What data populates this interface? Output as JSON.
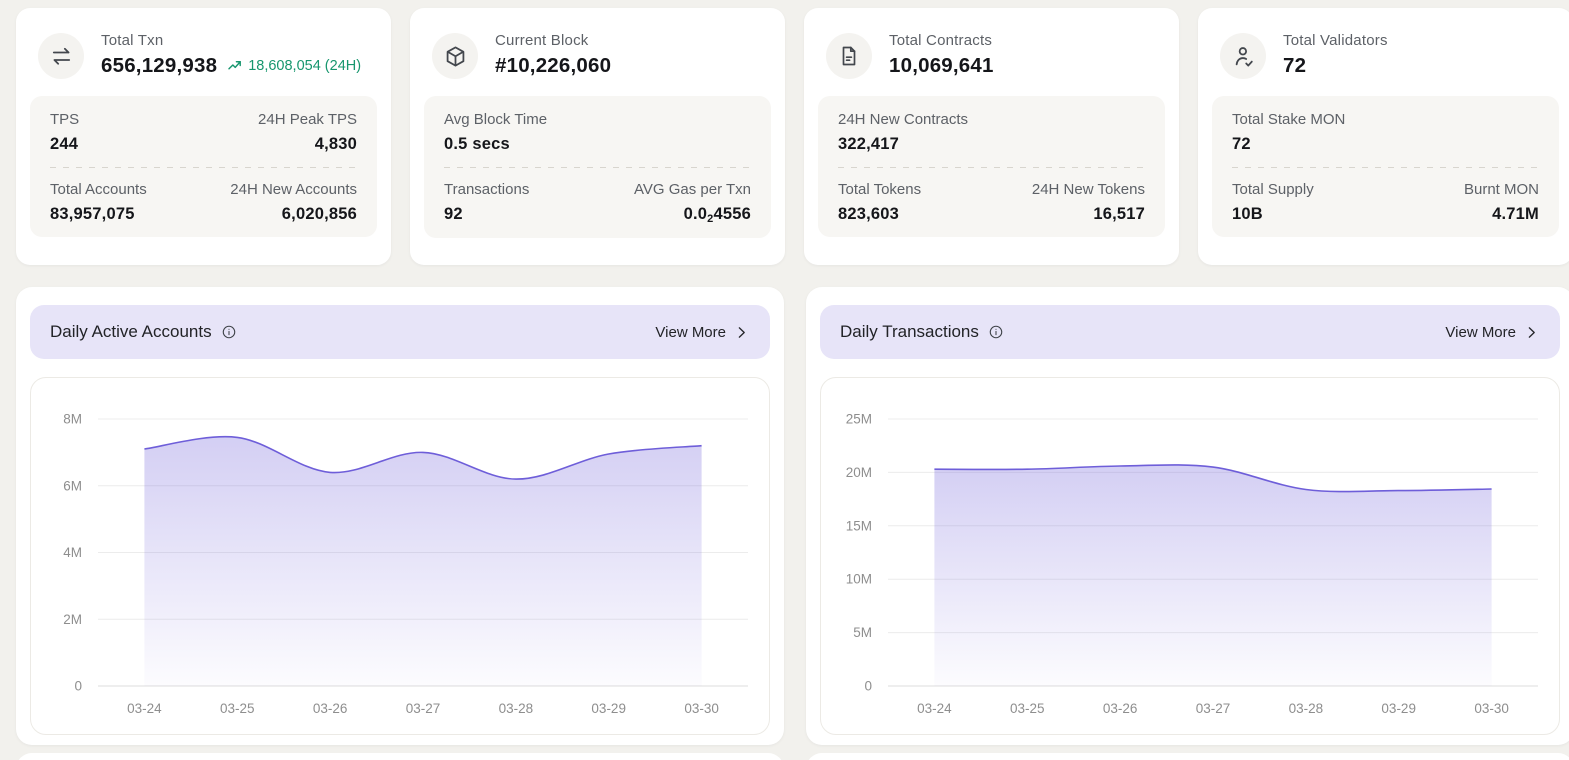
{
  "view_more_label": "View More",
  "colors": {
    "accent_purple": "#6E5ED9",
    "header_lavender": "#E7E4F8",
    "trend_green": "#17966E",
    "page_bg": "#F2F1ED"
  },
  "stat_cards": [
    {
      "icon": "transfer-icon",
      "title": "Total Txn",
      "value": "656,129,938",
      "trend": "18,608,054 (24H)",
      "rows": [
        {
          "left": {
            "label": "TPS",
            "value": "244"
          },
          "right": {
            "label": "24H Peak TPS",
            "value": "4,830"
          }
        },
        {
          "left": {
            "label": "Total Accounts",
            "value": "83,957,075"
          },
          "right": {
            "label": "24H New Accounts",
            "value": "6,020,856"
          }
        }
      ]
    },
    {
      "icon": "block-cube-icon",
      "title": "Current Block",
      "value": "#10,226,060",
      "rows": [
        {
          "left": {
            "label": "Avg Block Time",
            "value": "0.5 secs"
          }
        },
        {
          "left": {
            "label": "Transactions",
            "value": "92"
          },
          "right": {
            "label": "AVG Gas per Txn",
            "value_prefix": "0.0",
            "value_sub": "2",
            "value_suffix": "4556"
          }
        }
      ]
    },
    {
      "icon": "contract-document-icon",
      "title": "Total Contracts",
      "value": "10,069,641",
      "rows": [
        {
          "left": {
            "label": "24H New Contracts",
            "value": "322,417"
          }
        },
        {
          "left": {
            "label": "Total Tokens",
            "value": "823,603"
          },
          "right": {
            "label": "24H New Tokens",
            "value": "16,517"
          }
        }
      ]
    },
    {
      "icon": "validator-person-check-icon",
      "title": "Total Validators",
      "value": "72",
      "rows": [
        {
          "left": {
            "label": "Total Stake MON",
            "value": "72"
          }
        },
        {
          "left": {
            "label": "Total Supply",
            "value": "10B"
          },
          "right": {
            "label": "Burnt MON",
            "value": "4.71M"
          }
        }
      ]
    }
  ],
  "chart_data": [
    {
      "type": "area",
      "title": "Daily Active Accounts",
      "categories": [
        "03-24",
        "03-25",
        "03-26",
        "03-27",
        "03-28",
        "03-29",
        "03-30"
      ],
      "values_millions": [
        7.1,
        7.45,
        6.4,
        7.0,
        6.2,
        6.95,
        7.2
      ],
      "ytick_values": [
        0,
        2,
        4,
        6,
        8
      ],
      "ytick_labels": [
        "0",
        "2M",
        "4M",
        "6M",
        "8M"
      ],
      "ylim": [
        0,
        8
      ],
      "xlabel": "",
      "ylabel": "",
      "grid": true,
      "legend": "none",
      "line_color": "#6E5ED9"
    },
    {
      "type": "area",
      "title": "Daily Transactions",
      "categories": [
        "03-24",
        "03-25",
        "03-26",
        "03-27",
        "03-28",
        "03-29",
        "03-30"
      ],
      "values_millions": [
        20.3,
        20.3,
        20.6,
        20.5,
        18.4,
        18.3,
        18.45
      ],
      "ytick_values": [
        0,
        5,
        10,
        15,
        20,
        25
      ],
      "ytick_labels": [
        "0",
        "5M",
        "10M",
        "15M",
        "20M",
        "25M"
      ],
      "ylim": [
        0,
        25
      ],
      "xlabel": "",
      "ylabel": "",
      "grid": true,
      "legend": "none",
      "line_color": "#6E5ED9"
    }
  ]
}
